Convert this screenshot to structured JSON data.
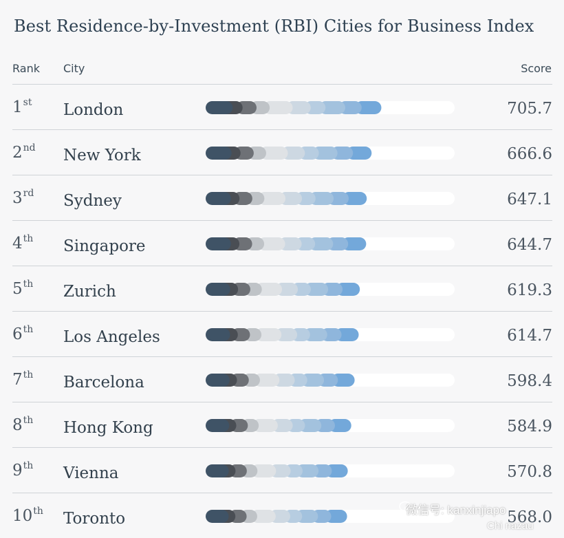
{
  "chart_data": {
    "type": "bar",
    "title": "Best Residence-by-Investment (RBI) Cities for Business Index",
    "columns": {
      "rank": "Rank",
      "city": "City",
      "score": "Score"
    },
    "xlim": [
      0,
      1000
    ],
    "segment_colors": [
      "#3f5366",
      "#4a4e54",
      "#6e7176",
      "#bfc3c7",
      "#dfe2e5",
      "#cdd8e2",
      "#b7cde1",
      "#a3c2de",
      "#8fb6dc",
      "#73a8da"
    ],
    "rows": [
      {
        "rank": "1",
        "suffix": "st",
        "city": "London",
        "score": 705.7,
        "score_label": "705.7"
      },
      {
        "rank": "2",
        "suffix": "nd",
        "city": "New York",
        "score": 666.6,
        "score_label": "666.6"
      },
      {
        "rank": "3",
        "suffix": "rd",
        "city": "Sydney",
        "score": 647.1,
        "score_label": "647.1"
      },
      {
        "rank": "4",
        "suffix": "th",
        "city": "Singapore",
        "score": 644.7,
        "score_label": "644.7"
      },
      {
        "rank": "5",
        "suffix": "th",
        "city": "Zurich",
        "score": 619.3,
        "score_label": "619.3"
      },
      {
        "rank": "6",
        "suffix": "th",
        "city": "Los Angeles",
        "score": 614.7,
        "score_label": "614.7"
      },
      {
        "rank": "7",
        "suffix": "th",
        "city": "Barcelona",
        "score": 598.4,
        "score_label": "598.4"
      },
      {
        "rank": "8",
        "suffix": "th",
        "city": "Hong Kong",
        "score": 584.9,
        "score_label": "584.9"
      },
      {
        "rank": "9",
        "suffix": "th",
        "city": "Vienna",
        "score": 570.8,
        "score_label": "570.8"
      },
      {
        "rank": "10",
        "suffix": "th",
        "city": "Toronto",
        "score": 568.0,
        "score_label": "568.0"
      }
    ]
  },
  "watermark": {
    "text": "微信号: kanxinjiapo",
    "sub": "Chi nazau"
  }
}
